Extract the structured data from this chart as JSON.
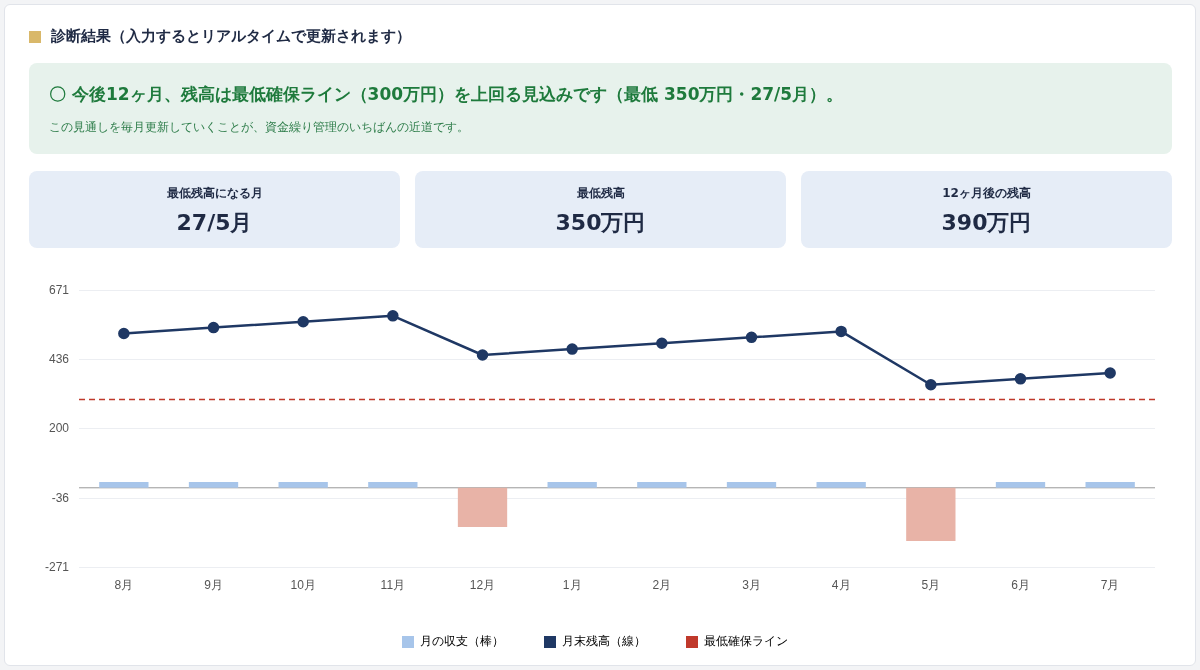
{
  "chart_data": {
    "type": "bar",
    "title": "診断結果（入力するとリアルタイムで更新されます）",
    "subtitle": "〇 今後12ヶ月、残高は最低確保ライン（300万円）を上回る見込みです（最低 350万円・27/5月）。",
    "annotations": [
      "この見通しを毎月更新していくことが、資金繰り管理のいちばんの近道です。",
      "最低残高になる月",
      "27/5月",
      "最低残高",
      "350万円",
      "12ヶ月後の残高",
      "390万円"
    ],
    "categories": [
      "8月",
      "9月",
      "10月",
      "11月",
      "12月",
      "1月",
      "2月",
      "3月",
      "4月",
      "5月",
      "6月",
      "7月"
    ],
    "series": [
      {
        "name": "月の収支（棒）",
        "color": "#a7c5ea",
        "colors": [
          "#a7c5ea",
          "#a7c5ea",
          "#a7c5ea",
          "#a7c5ea",
          "#e8b3a7",
          "#a7c5ea",
          "#a7c5ea",
          "#a7c5ea",
          "#a7c5ea",
          "#e8b3a7",
          "#a7c5ea",
          "#a7c5ea"
        ],
        "values": [
          20,
          20,
          20,
          20,
          -133,
          20,
          20,
          20,
          20,
          -181,
          20,
          20
        ]
      },
      {
        "name": "月末残高（線）",
        "type": "line",
        "color": "#1f3864",
        "marker": "circle",
        "line_style": "solid",
        "values": [
          524,
          544,
          564,
          584,
          451,
          471,
          491,
          511,
          531,
          350,
          370,
          390
        ]
      }
    ],
    "ref_lines": [
      {
        "axis": "y",
        "value": 300,
        "label": "最低確保ライン",
        "color": "#c0392b",
        "line_style": "dashed"
      }
    ],
    "ylim": [
      -271,
      671
    ],
    "yticks": [
      671,
      436,
      200,
      -36,
      -271
    ],
    "grid": "y",
    "legend": "bottom"
  }
}
